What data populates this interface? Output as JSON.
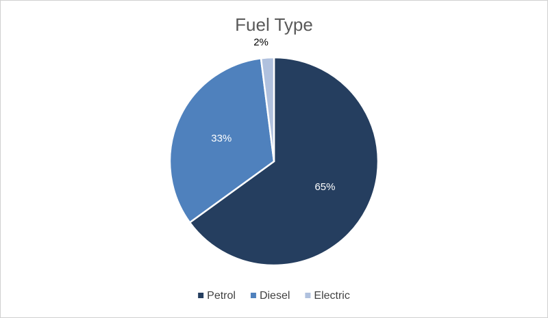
{
  "chart_data": {
    "type": "pie",
    "title": "Fuel Type",
    "categories": [
      "Petrol",
      "Diesel",
      "Electric"
    ],
    "values": [
      65,
      33,
      2
    ],
    "value_labels": [
      "65%",
      "33%",
      "2%"
    ],
    "colors": [
      "#253e5f",
      "#4f81bd",
      "#b0c1de"
    ],
    "legend": "bottom"
  }
}
